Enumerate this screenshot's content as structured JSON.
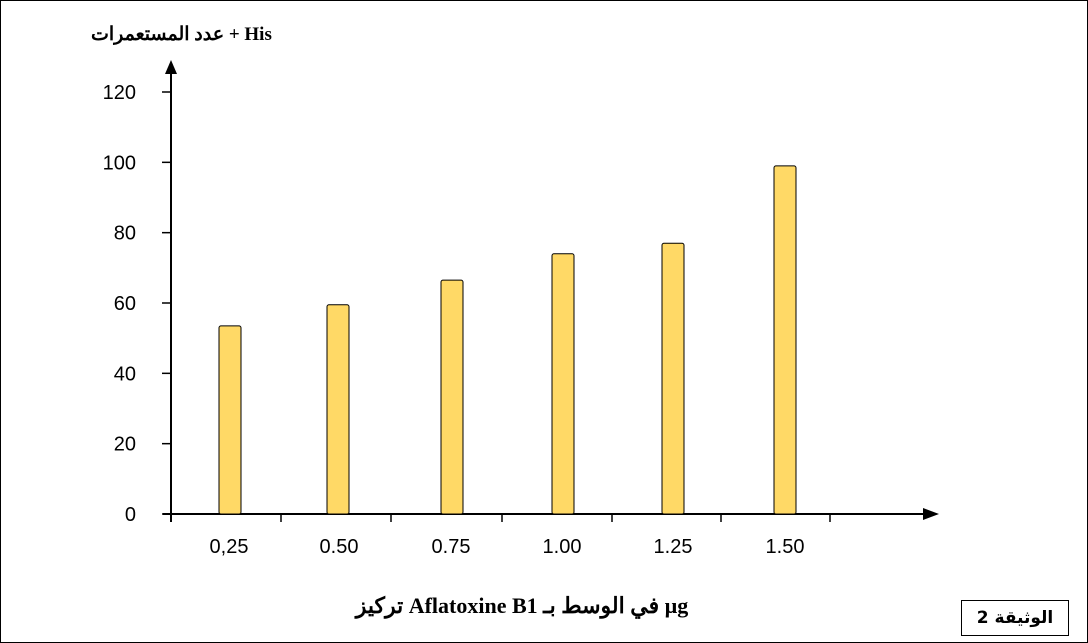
{
  "chart_data": {
    "type": "bar",
    "categories": [
      "0,25",
      "0.50",
      "0.75",
      "1.00",
      "1.25",
      "1.50"
    ],
    "values": [
      53.5,
      59.5,
      66.5,
      74,
      77,
      99
    ],
    "ylabel": "عدد المستعمرات + His",
    "xlabel": "تركيز Aflatoxine B1 في الوسط بـ µg",
    "ylim": [
      0,
      120
    ],
    "yticks": [
      0,
      20,
      40,
      60,
      80,
      100,
      120
    ],
    "grid": false,
    "bar_color": "#FFD966",
    "bar_stroke": "#000000"
  },
  "document_label": "الوثيقة 2"
}
